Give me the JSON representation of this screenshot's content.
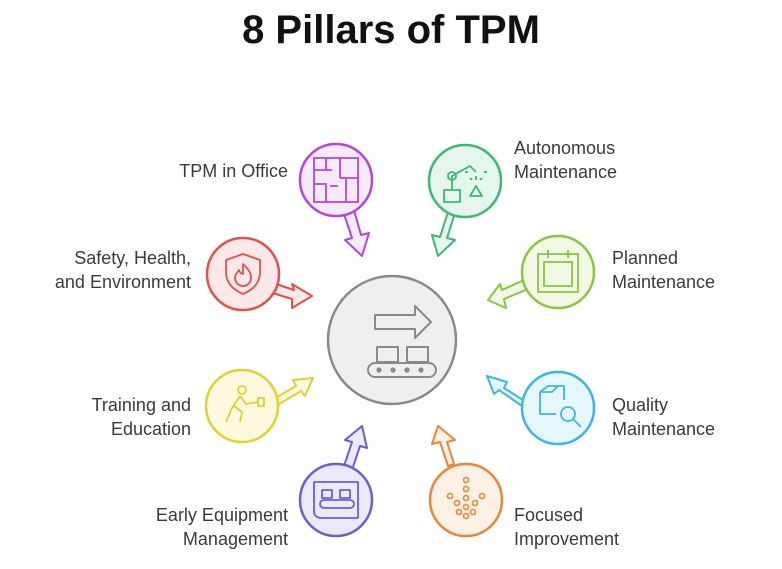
{
  "title": "8 Pillars of TPM",
  "pillars": [
    {
      "line1": "TPM in Office",
      "line2": "",
      "color": "#b347d9",
      "fill": "#f6e9fb",
      "icon": "floor-plan-icon"
    },
    {
      "line1": "Autonomous",
      "line2": "Maintenance",
      "color": "#3fb874",
      "fill": "#e5f7ed",
      "icon": "robot-arm-icon"
    },
    {
      "line1": "Safety, Health,",
      "line2": "and Environment",
      "color": "#e05151",
      "fill": "#fce8e8",
      "icon": "shield-flame-icon"
    },
    {
      "line1": "Planned",
      "line2": "Maintenance",
      "color": "#8cc53f",
      "fill": "#f1f9e5",
      "icon": "calendar-icon"
    },
    {
      "line1": "Training and",
      "line2": "Education",
      "color": "#e3cf2f",
      "fill": "#fcf9df",
      "icon": "presenter-icon"
    },
    {
      "line1": "Quality",
      "line2": "Maintenance",
      "color": "#3fb6e0",
      "fill": "#e5f6fc",
      "icon": "box-magnifier-icon"
    },
    {
      "line1": "Early Equipment",
      "line2": "Management",
      "color": "#6b5fd6",
      "fill": "#ece9fb",
      "icon": "conveyor-screen-icon"
    },
    {
      "line1": "Focused",
      "line2": "Improvement",
      "color": "#e6873a",
      "fill": "#fdf0e5",
      "icon": "dot-arrow-icon"
    }
  ],
  "center": {
    "icon": "conveyor-arrow-icon",
    "color": "#8a8a8a",
    "fill": "#efefef"
  }
}
